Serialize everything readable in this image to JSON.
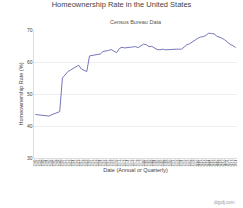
{
  "chart_data": {
    "type": "line",
    "title": "Homeownership Rate in the United States",
    "subtitle": "Census Bureau Data",
    "xlabel": "Date (Annual or Quarterly)",
    "ylabel": "Homeownership Rate (%)",
    "annotations": [
      "dqydj.com"
    ],
    "color": "#7777bb",
    "x": [
      1940,
      1941,
      1942,
      1943,
      1944,
      1945,
      1946,
      1947,
      1948,
      1949,
      1950,
      1951,
      1952,
      1953,
      1954,
      1955,
      1956,
      1957,
      1958,
      1959,
      1960,
      1961,
      1962,
      1963,
      1964,
      1965,
      1966,
      1967,
      1968,
      1969,
      1970,
      1971,
      1972,
      1973,
      1974,
      1975,
      1976,
      1977,
      1978,
      1979,
      1980,
      1981,
      1982,
      1983,
      1984,
      1985,
      1986,
      1987,
      1988,
      1989,
      1990,
      1991,
      1992,
      1993,
      1994,
      1995,
      1996,
      1997,
      1998,
      1999,
      2000,
      2001,
      2002,
      2003,
      2004,
      2005,
      2006,
      2007,
      2008,
      2009,
      2010,
      2011,
      2012,
      2013,
      2014
    ],
    "values": [
      43.6,
      43.5,
      43.3,
      43.1,
      43.0,
      43.1,
      43.5,
      43.8,
      44.2,
      44.5,
      55.0,
      56.0,
      57.0,
      57.5,
      58.0,
      58.5,
      59.0,
      57.8,
      57.5,
      57.0,
      61.9,
      62.0,
      62.3,
      62.3,
      62.5,
      63.3,
      63.4,
      63.6,
      63.9,
      63.4,
      62.9,
      64.2,
      64.6,
      64.4,
      64.6,
      64.6,
      64.7,
      64.8,
      64.5,
      65.0,
      65.6,
      65.4,
      64.8,
      64.9,
      64.5,
      63.9,
      63.8,
      64.0,
      63.8,
      63.9,
      63.9,
      64.1,
      64.0,
      64.0,
      64.0,
      64.7,
      65.4,
      65.7,
      66.3,
      66.8,
      67.4,
      67.8,
      67.9,
      68.3,
      69.0,
      68.9,
      68.8,
      68.1,
      67.8,
      67.4,
      66.9,
      66.1,
      65.5,
      65.1,
      64.5
    ],
    "xlim": [
      1939.5,
      2014.5
    ],
    "xticks": [
      1940,
      1941,
      1942,
      1943,
      1944,
      1945,
      1946,
      1947,
      1948,
      1949,
      1950,
      1951,
      1952,
      1953,
      1954,
      1955,
      1956,
      1957,
      1958,
      1959,
      1960,
      1961,
      1962,
      1963,
      1964,
      1965,
      1966,
      1967,
      1968,
      1969,
      1970,
      1971,
      1972,
      1973,
      1974,
      1975,
      1976,
      1977,
      1978,
      1979,
      1980,
      1981,
      1982,
      1983,
      1984,
      1985,
      1986,
      1987,
      1988,
      1989,
      1990,
      1991,
      1992,
      1993,
      1994,
      1995,
      1996,
      1997,
      1998,
      1999,
      2000,
      2001,
      2002,
      2003,
      2004,
      2005,
      2006,
      2007,
      2008,
      2009,
      2010,
      2011,
      2012,
      2013,
      2014
    ],
    "ylim": [
      30,
      70
    ],
    "yticks": [
      30,
      40,
      50,
      60,
      70
    ],
    "grid": true
  }
}
